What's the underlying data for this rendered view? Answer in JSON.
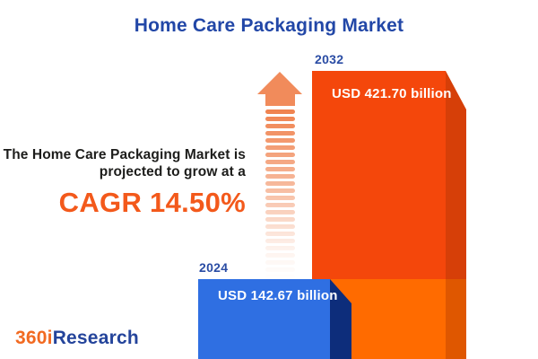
{
  "title": "Home Care Packaging Market",
  "headline": {
    "line1": "The Home Care Packaging Market is",
    "line2": "projected to grow at a",
    "cagr": "CAGR 14.50%"
  },
  "bars": [
    {
      "year": "2024",
      "value_label": "USD 142.67 billion"
    },
    {
      "year": "2032",
      "value_label": "USD 421.70 billion"
    }
  ],
  "logo": {
    "part1": "360i",
    "part2": "Research"
  },
  "colors": {
    "title_blue": "#2247A7",
    "year_label_blue": "#2A4CA4",
    "cagr_orange": "#F3591B",
    "headline_text": "#1D1D1B",
    "bar_2024_face": "#2F6FE2",
    "bar_2024_side": "#0D2D7B",
    "bar_2032_face_top": "#F4470B",
    "bar_2032_face_bottom": "#FF6B00",
    "bar_2032_side_top": "#D63F08",
    "bar_2032_side_bottom": "#DF5700",
    "arrow_orange": "#F18B5B",
    "logo_orange": "#F26A21",
    "logo_blue": "#24449B"
  },
  "chart_data": {
    "type": "bar",
    "title": "Home Care Packaging Market",
    "categories": [
      "2024",
      "2032"
    ],
    "values": [
      142.67,
      421.7
    ],
    "unit": "USD billion",
    "value_labels": [
      "USD 142.67 billion",
      "USD 421.70 billion"
    ],
    "cagr_percent": 14.5,
    "annotation": "The Home Care Packaging Market is projected to grow at a CAGR 14.50%",
    "series_colors": [
      "#2F6FE2",
      "#F4470B"
    ],
    "legend": "none",
    "axes": "none",
    "orientation": "vertical",
    "style": "3d-infographic"
  }
}
